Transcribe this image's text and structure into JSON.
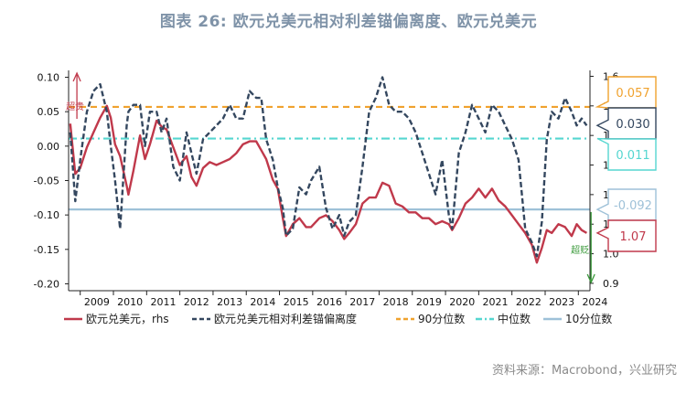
{
  "title": "图表 26: 欧元兑美元相对利差锚偏离度、欧元兑美元",
  "source": "资料来源：Macrobond，兴业研究",
  "chart_data": {
    "type": "line",
    "title": "图表 26: 欧元兑美元相对利差锚偏离度、欧元兑美元",
    "x_range": [
      2008.65,
      2024.35
    ],
    "x_ticks": [
      "2009",
      "2010",
      "2011",
      "2012",
      "2013",
      "2014",
      "2015",
      "2016",
      "2017",
      "2018",
      "2019",
      "2020",
      "2021",
      "2022",
      "2023",
      "2024"
    ],
    "y_left": {
      "range": [
        -0.21,
        0.11
      ],
      "ticks": [
        "0.10",
        "0.05",
        "0.00",
        "-0.05",
        "-0.10",
        "-0.15",
        "-0.20"
      ],
      "tick_values": [
        0.1,
        0.05,
        0.0,
        -0.05,
        -0.1,
        -0.15,
        -0.2
      ]
    },
    "y_right": {
      "range": [
        0.875,
        1.62
      ],
      "ticks": [
        "1.6",
        "1.5",
        "1.4",
        "1.3",
        "1.2",
        "1.1",
        "1.0",
        "0.9"
      ],
      "tick_values": [
        1.6,
        1.5,
        1.4,
        1.3,
        1.2,
        1.1,
        1.0,
        0.9
      ]
    },
    "series": [
      {
        "name": "欧元兑美元，rhs",
        "axis": "right",
        "color": "#c0394b",
        "style": "solid",
        "x": [
          2008.7,
          2008.85,
          2009.0,
          2009.2,
          2009.4,
          2009.6,
          2009.8,
          2009.92,
          2010.05,
          2010.2,
          2010.4,
          2010.45,
          2010.6,
          2010.8,
          2010.95,
          2011.1,
          2011.3,
          2011.45,
          2011.6,
          2011.8,
          2012.0,
          2012.2,
          2012.35,
          2012.5,
          2012.7,
          2012.9,
          2013.1,
          2013.3,
          2013.5,
          2013.7,
          2013.9,
          2014.1,
          2014.3,
          2014.45,
          2014.6,
          2014.8,
          2014.95,
          2015.1,
          2015.2,
          2015.4,
          2015.6,
          2015.8,
          2015.95,
          2016.2,
          2016.4,
          2016.6,
          2016.8,
          2016.95,
          2017.1,
          2017.3,
          2017.5,
          2017.7,
          2017.9,
          2018.1,
          2018.3,
          2018.5,
          2018.7,
          2018.9,
          2019.1,
          2019.3,
          2019.5,
          2019.7,
          2019.9,
          2020.1,
          2020.2,
          2020.4,
          2020.6,
          2020.8,
          2021.0,
          2021.2,
          2021.4,
          2021.6,
          2021.8,
          2022.0,
          2022.2,
          2022.4,
          2022.6,
          2022.75,
          2022.9,
          2023.05,
          2023.2,
          2023.4,
          2023.6,
          2023.8,
          2023.95,
          2024.1,
          2024.25
        ],
        "values": [
          1.44,
          1.27,
          1.29,
          1.36,
          1.41,
          1.46,
          1.5,
          1.46,
          1.37,
          1.33,
          1.23,
          1.2,
          1.28,
          1.4,
          1.32,
          1.37,
          1.45,
          1.43,
          1.42,
          1.36,
          1.3,
          1.33,
          1.26,
          1.23,
          1.29,
          1.31,
          1.3,
          1.31,
          1.32,
          1.34,
          1.37,
          1.38,
          1.38,
          1.35,
          1.32,
          1.25,
          1.22,
          1.12,
          1.06,
          1.1,
          1.12,
          1.09,
          1.09,
          1.12,
          1.13,
          1.11,
          1.08,
          1.05,
          1.07,
          1.1,
          1.17,
          1.19,
          1.19,
          1.24,
          1.23,
          1.17,
          1.16,
          1.14,
          1.14,
          1.12,
          1.12,
          1.1,
          1.11,
          1.1,
          1.08,
          1.12,
          1.17,
          1.19,
          1.22,
          1.19,
          1.22,
          1.18,
          1.16,
          1.13,
          1.1,
          1.07,
          1.03,
          0.97,
          1.02,
          1.08,
          1.07,
          1.1,
          1.09,
          1.06,
          1.1,
          1.08,
          1.07
        ]
      },
      {
        "name": "欧元兑美元相对利差锚偏离度",
        "axis": "left",
        "color": "#34475f",
        "style": "dashed",
        "x": [
          2008.7,
          2008.85,
          2009.0,
          2009.2,
          2009.4,
          2009.6,
          2009.8,
          2009.92,
          2010.05,
          2010.2,
          2010.4,
          2010.45,
          2010.6,
          2010.8,
          2010.95,
          2011.1,
          2011.3,
          2011.45,
          2011.6,
          2011.8,
          2012.0,
          2012.2,
          2012.35,
          2012.5,
          2012.7,
          2012.9,
          2013.1,
          2013.3,
          2013.5,
          2013.7,
          2013.9,
          2014.1,
          2014.3,
          2014.45,
          2014.6,
          2014.8,
          2014.95,
          2015.1,
          2015.2,
          2015.4,
          2015.6,
          2015.8,
          2015.95,
          2016.2,
          2016.4,
          2016.6,
          2016.8,
          2016.95,
          2017.1,
          2017.3,
          2017.5,
          2017.7,
          2017.9,
          2018.1,
          2018.3,
          2018.5,
          2018.7,
          2018.9,
          2019.1,
          2019.3,
          2019.5,
          2019.7,
          2019.9,
          2020.1,
          2020.2,
          2020.4,
          2020.6,
          2020.8,
          2021.0,
          2021.2,
          2021.4,
          2021.6,
          2021.8,
          2022.0,
          2022.2,
          2022.4,
          2022.6,
          2022.75,
          2022.9,
          2023.05,
          2023.2,
          2023.4,
          2023.6,
          2023.8,
          2023.95,
          2024.1,
          2024.25
        ],
        "values": [
          0.02,
          -0.08,
          -0.02,
          0.05,
          0.08,
          0.09,
          0.05,
          0.0,
          -0.05,
          -0.12,
          0.03,
          0.05,
          0.06,
          0.06,
          0.0,
          0.05,
          0.05,
          0.02,
          0.04,
          -0.03,
          -0.05,
          0.02,
          -0.01,
          -0.04,
          0.01,
          0.02,
          0.03,
          0.04,
          0.06,
          0.04,
          0.04,
          0.08,
          0.07,
          0.07,
          0.01,
          -0.02,
          -0.06,
          -0.09,
          -0.13,
          -0.12,
          -0.06,
          -0.07,
          -0.05,
          -0.03,
          -0.09,
          -0.12,
          -0.1,
          -0.13,
          -0.11,
          -0.1,
          -0.03,
          0.05,
          0.07,
          0.1,
          0.06,
          0.05,
          0.05,
          0.04,
          0.02,
          -0.01,
          -0.04,
          -0.07,
          -0.02,
          -0.1,
          -0.12,
          -0.01,
          0.02,
          0.06,
          0.04,
          0.02,
          0.06,
          0.05,
          0.03,
          0.01,
          -0.02,
          -0.12,
          -0.14,
          -0.16,
          -0.11,
          0.01,
          0.05,
          0.04,
          0.07,
          0.05,
          0.03,
          0.04,
          0.03
        ]
      }
    ],
    "reference_lines": [
      {
        "name": "90分位数",
        "value": 0.057,
        "label": "0.057",
        "color": "#f0a22e",
        "style": "dashed"
      },
      {
        "name": "中位数",
        "value": 0.011,
        "label": "0.011",
        "color": "#55d6d0",
        "style": "dashdot"
      },
      {
        "name": "10分位数",
        "value": -0.092,
        "label": "-0.092",
        "color": "#9ec1d8",
        "style": "solid"
      }
    ],
    "callouts": [
      {
        "label": "0.057",
        "color": "#f0a22e"
      },
      {
        "label": "0.030",
        "color": "#34475f"
      },
      {
        "label": "0.011",
        "color": "#55d6d0"
      },
      {
        "label": "-0.092",
        "color": "#9ec1d8"
      },
      {
        "label": "1.07",
        "color": "#c0394b"
      }
    ],
    "annotations": [
      {
        "text": "超贵",
        "color": "#c0394b"
      },
      {
        "text": "超贬",
        "color": "#3a9a3a"
      }
    ],
    "legend": {
      "placement": "bottom"
    }
  }
}
